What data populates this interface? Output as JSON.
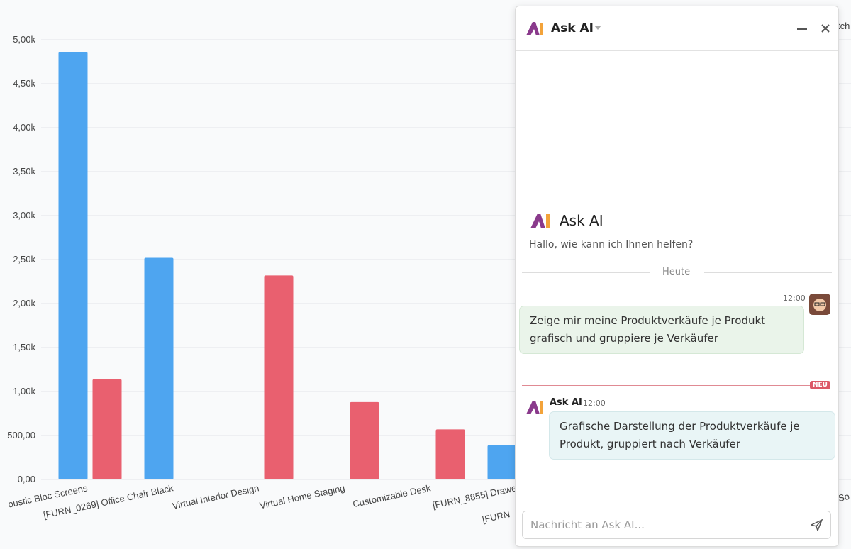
{
  "chart_data": {
    "type": "bar",
    "categories": [
      "oustic Bloc Screens",
      "[FURN_0269] Office Chair Black",
      "Virtual Interior Design",
      "Virtual Home Staging",
      "Customizable Desk",
      "[FURN_8855] Drawe"
    ],
    "series": [
      {
        "color": "#4ea5f0",
        "values": [
          4860,
          2520,
          null,
          null,
          null,
          390
        ]
      },
      {
        "color": "#e9606f",
        "values": [
          1140,
          null,
          2320,
          880,
          570,
          null
        ]
      }
    ],
    "ylim": [
      0,
      5000
    ],
    "yticks": [
      {
        "value": 0,
        "label": "0,00"
      },
      {
        "value": 500,
        "label": "500,00"
      },
      {
        "value": 1000,
        "label": "1,00k"
      },
      {
        "value": 1500,
        "label": "1,50k"
      },
      {
        "value": 2000,
        "label": "2,00k"
      },
      {
        "value": 2500,
        "label": "2,50k"
      },
      {
        "value": 3000,
        "label": "3,00k"
      },
      {
        "value": 3500,
        "label": "3,50k"
      },
      {
        "value": 4000,
        "label": "4,00k"
      },
      {
        "value": 4500,
        "label": "4,50k"
      },
      {
        "value": 5000,
        "label": "5,00k"
      }
    ],
    "grid": true
  },
  "clipped_labels": [
    "tch",
    "[FURN",
    "So"
  ],
  "chat": {
    "title": "Ask AI",
    "welcome_title": "Ask AI",
    "welcome_text": "Hallo, wie kann ich Ihnen helfen?",
    "date_separator": "Heute",
    "user_message": {
      "time": "12:00",
      "text": "Zeige mir meine Produktverkäufe je Produkt grafisch und gruppiere je Verkäufer"
    },
    "new_badge": "NEU",
    "bot_message": {
      "author": "Ask AI",
      "time": "12:00",
      "text": "Grafische Darstellung der Produktverkäufe je Produkt, gruppiert nach Verkäufer"
    },
    "input_placeholder": "Nachricht an Ask AI..."
  }
}
